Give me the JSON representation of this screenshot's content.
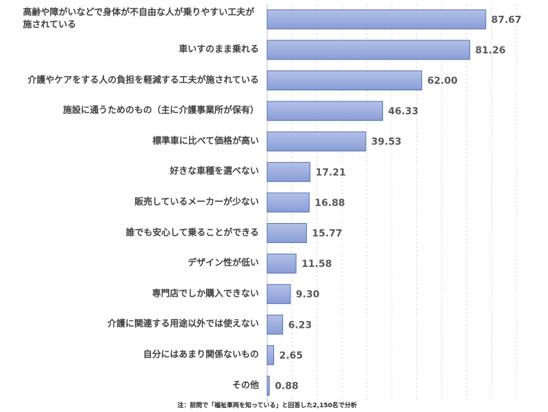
{
  "chart_data": {
    "type": "bar",
    "orientation": "horizontal",
    "title": "",
    "xlabel": "",
    "ylabel": "",
    "categories": [
      "高齢や障がいなどで身体が不自由な人が乗りやすい工夫が施されている",
      "車いすのまま乗れる",
      "介護やケアをする人の負担を軽減する工夫が施されている",
      "施設に通うためのもの（主に介護事業所が保有）",
      "標準車に比べて価格が高い",
      "好きな車種を選べない",
      "販売しているメーカーが少ない",
      "誰でも安心して乗ることができる",
      "デザイン性が低い",
      "専門店でしか購入できない",
      "介護に関連する用途以外では使えない",
      "自分にはあまり関係ないもの",
      "その他"
    ],
    "values": [
      87.67,
      81.26,
      62.0,
      46.33,
      39.53,
      17.21,
      16.88,
      15.77,
      11.58,
      9.3,
      6.23,
      2.65,
      0.88
    ],
    "xlim": [
      0,
      100
    ],
    "grid": true,
    "legend": "none",
    "colors": {
      "bar_top": "#b3c1e8",
      "bar_bottom": "#8a9dd6",
      "bar_edge": "#4e6cb4",
      "grid": "#d9d9d9",
      "axis": "#bfbfbf"
    }
  },
  "footnote": "注：前問で「福祉車両を知っている」と回答した2,150名で分析"
}
